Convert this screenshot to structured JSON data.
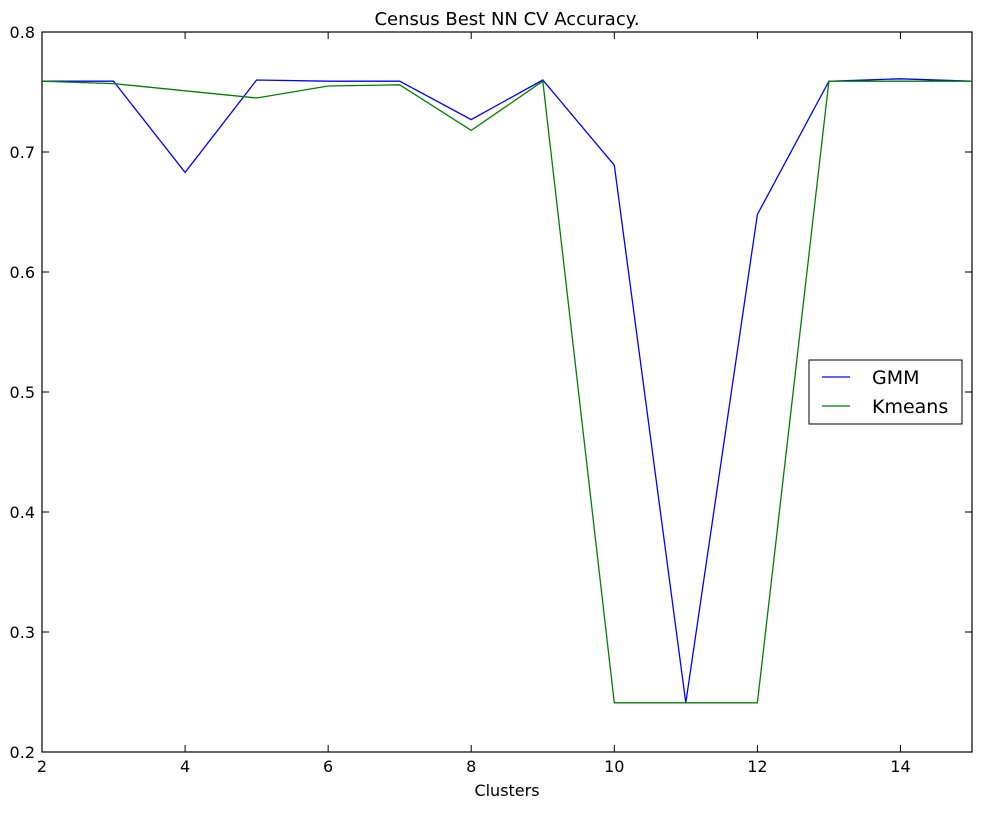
{
  "chart_data": {
    "type": "line",
    "title": "Census Best NN CV Accuracy.",
    "xlabel": "Clusters",
    "ylabel": "",
    "xlim": [
      2,
      15
    ],
    "ylim": [
      0.2,
      0.8
    ],
    "xticks": [
      2,
      4,
      6,
      8,
      10,
      12,
      14
    ],
    "xtick_labels": [
      "2",
      "4",
      "6",
      "8",
      "10",
      "12",
      "14"
    ],
    "yticks": [
      0.2,
      0.3,
      0.4,
      0.5,
      0.6,
      0.7,
      0.8
    ],
    "ytick_labels": [
      "0.2",
      "0.3",
      "0.4",
      "0.5",
      "0.6",
      "0.7",
      "0.8"
    ],
    "grid": false,
    "legend_position": "center-right",
    "x": [
      2,
      3,
      4,
      5,
      6,
      7,
      8,
      9,
      10,
      11,
      12,
      13,
      14,
      15
    ],
    "series": [
      {
        "name": "GMM",
        "color": "#0000ff",
        "values": [
          0.759,
          0.759,
          0.683,
          0.76,
          0.759,
          0.759,
          0.727,
          0.76,
          0.689,
          0.241,
          0.648,
          0.759,
          0.761,
          0.759
        ]
      },
      {
        "name": "Kmeans",
        "color": "#008000",
        "values": [
          0.759,
          0.757,
          0.751,
          0.745,
          0.755,
          0.756,
          0.718,
          0.759,
          0.241,
          0.241,
          0.241,
          0.759,
          0.759,
          0.759
        ]
      }
    ]
  }
}
